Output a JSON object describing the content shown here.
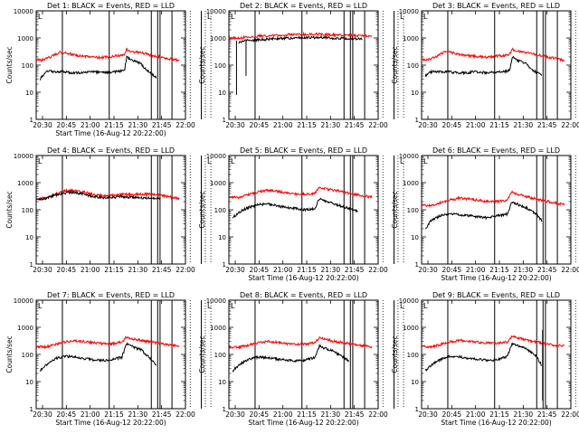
{
  "chart_data": {
    "type": "line",
    "layout": "3x3 grid",
    "ylabel": "Counts/sec",
    "xlabel": "Start Time (16-Aug-12 20:22:00)",
    "ylim": [
      1,
      10000
    ],
    "yscale": "log",
    "yticks": [
      "1",
      "10",
      "100",
      "1000",
      "10000"
    ],
    "xlim": [
      "20:26",
      "22:00"
    ],
    "xticks": [
      "20:30",
      "20:45",
      "21:00",
      "21:15",
      "21:30",
      "21:45",
      "22:00"
    ],
    "legend": {
      "black": "Events",
      "red": "LLD"
    },
    "colors": {
      "events": "#000000",
      "lld": "#ff0000"
    },
    "marker_text": "L",
    "solid_markers_min": [
      20.5,
      50.0,
      76.5,
      80.5,
      82.0,
      89.5,
      108.0
    ],
    "dotted_markers_min": [
      101.0,
      110.5,
      114.0
    ],
    "panels": [
      {
        "title": "Det  1: BLACK = Events, RED = LLD",
        "show_xlabel": true,
        "events": [
          [
            4,
            30
          ],
          [
            8,
            45
          ],
          [
            12,
            60
          ],
          [
            20,
            58
          ],
          [
            30,
            56
          ],
          [
            40,
            52
          ],
          [
            50,
            53
          ],
          [
            55,
            58
          ],
          [
            60,
            55
          ],
          [
            70,
            52
          ],
          [
            80,
            55
          ],
          [
            90,
            60
          ],
          [
            93,
            70
          ],
          [
            95,
            200
          ],
          [
            97,
            180
          ],
          [
            100,
            150
          ],
          [
            105,
            140
          ],
          [
            110,
            110
          ],
          [
            115,
            70
          ],
          [
            120,
            50
          ],
          [
            124,
            40
          ],
          [
            126,
            35
          ]
        ],
        "lld": [
          [
            0,
            160
          ],
          [
            5,
            150
          ],
          [
            10,
            170
          ],
          [
            15,
            200
          ],
          [
            20,
            250
          ],
          [
            25,
            300
          ],
          [
            30,
            290
          ],
          [
            40,
            240
          ],
          [
            50,
            210
          ],
          [
            60,
            200
          ],
          [
            70,
            190
          ],
          [
            75,
            200
          ],
          [
            80,
            210
          ],
          [
            85,
            220
          ],
          [
            90,
            230
          ],
          [
            93,
            260
          ],
          [
            95,
            400
          ],
          [
            97,
            330
          ],
          [
            100,
            310
          ],
          [
            110,
            290
          ],
          [
            120,
            230
          ],
          [
            130,
            200
          ],
          [
            140,
            170
          ],
          [
            150,
            150
          ]
        ]
      },
      {
        "title": "Det  2: BLACK = Events, RED = LLD",
        "show_xlabel": false,
        "events": [
          [
            10,
            700
          ],
          [
            15,
            780
          ],
          [
            30,
            850
          ],
          [
            50,
            950
          ],
          [
            70,
            1000
          ],
          [
            95,
            1050
          ],
          [
            110,
            980
          ],
          [
            125,
            940
          ],
          [
            135,
            920
          ],
          [
            140,
            900
          ]
        ],
        "lld": [
          [
            0,
            1000
          ],
          [
            10,
            1010
          ],
          [
            30,
            1150
          ],
          [
            50,
            1250
          ],
          [
            70,
            1350
          ],
          [
            90,
            1400
          ],
          [
            100,
            1350
          ],
          [
            120,
            1250
          ],
          [
            140,
            1200
          ],
          [
            150,
            1200
          ]
        ],
        "spikes": [
          [
            8,
            8
          ],
          [
            18,
            40
          ]
        ]
      },
      {
        "title": "Det  3: BLACK = Events, RED = LLD",
        "show_xlabel": false,
        "events": [
          [
            4,
            40
          ],
          [
            8,
            50
          ],
          [
            12,
            60
          ],
          [
            20,
            58
          ],
          [
            30,
            56
          ],
          [
            40,
            52
          ],
          [
            50,
            53
          ],
          [
            55,
            58
          ],
          [
            60,
            55
          ],
          [
            70,
            52
          ],
          [
            80,
            55
          ],
          [
            90,
            60
          ],
          [
            93,
            70
          ],
          [
            95,
            200
          ],
          [
            97,
            180
          ],
          [
            100,
            150
          ],
          [
            105,
            140
          ],
          [
            110,
            110
          ],
          [
            115,
            70
          ],
          [
            120,
            55
          ],
          [
            126,
            45
          ]
        ],
        "lld": [
          [
            0,
            160
          ],
          [
            5,
            150
          ],
          [
            10,
            170
          ],
          [
            15,
            200
          ],
          [
            20,
            260
          ],
          [
            25,
            310
          ],
          [
            30,
            300
          ],
          [
            40,
            250
          ],
          [
            50,
            220
          ],
          [
            60,
            205
          ],
          [
            70,
            195
          ],
          [
            75,
            205
          ],
          [
            80,
            220
          ],
          [
            85,
            225
          ],
          [
            90,
            235
          ],
          [
            93,
            260
          ],
          [
            95,
            400
          ],
          [
            97,
            340
          ],
          [
            100,
            320
          ],
          [
            110,
            300
          ],
          [
            120,
            240
          ],
          [
            130,
            210
          ],
          [
            140,
            180
          ],
          [
            150,
            150
          ]
        ]
      },
      {
        "title": "Det  4: BLACK = Events, RED = LLD",
        "show_xlabel": false,
        "events": [
          [
            0,
            230
          ],
          [
            10,
            260
          ],
          [
            20,
            340
          ],
          [
            30,
            420
          ],
          [
            40,
            440
          ],
          [
            50,
            380
          ],
          [
            60,
            300
          ],
          [
            70,
            280
          ],
          [
            80,
            290
          ],
          [
            90,
            300
          ],
          [
            100,
            290
          ],
          [
            110,
            280
          ],
          [
            120,
            270
          ],
          [
            130,
            260
          ]
        ],
        "lld": [
          [
            0,
            250
          ],
          [
            10,
            270
          ],
          [
            20,
            380
          ],
          [
            30,
            500
          ],
          [
            40,
            520
          ],
          [
            50,
            450
          ],
          [
            60,
            360
          ],
          [
            70,
            330
          ],
          [
            80,
            340
          ],
          [
            90,
            360
          ],
          [
            100,
            370
          ],
          [
            110,
            380
          ],
          [
            120,
            370
          ],
          [
            130,
            340
          ],
          [
            140,
            300
          ],
          [
            150,
            260
          ]
        ]
      },
      {
        "title": "Det  5: BLACK = Events, RED = LLD",
        "show_xlabel": true,
        "events": [
          [
            4,
            50
          ],
          [
            10,
            80
          ],
          [
            20,
            120
          ],
          [
            30,
            150
          ],
          [
            40,
            170
          ],
          [
            50,
            140
          ],
          [
            60,
            120
          ],
          [
            70,
            110
          ],
          [
            80,
            100
          ],
          [
            90,
            110
          ],
          [
            95,
            250
          ],
          [
            100,
            220
          ],
          [
            110,
            170
          ],
          [
            120,
            130
          ],
          [
            130,
            100
          ],
          [
            135,
            90
          ]
        ],
        "lld": [
          [
            0,
            300
          ],
          [
            10,
            290
          ],
          [
            20,
            350
          ],
          [
            30,
            450
          ],
          [
            40,
            520
          ],
          [
            50,
            480
          ],
          [
            60,
            420
          ],
          [
            70,
            380
          ],
          [
            80,
            380
          ],
          [
            90,
            400
          ],
          [
            95,
            650
          ],
          [
            100,
            600
          ],
          [
            110,
            530
          ],
          [
            120,
            460
          ],
          [
            130,
            380
          ],
          [
            140,
            330
          ],
          [
            150,
            290
          ]
        ]
      },
      {
        "title": "Det  6: BLACK = Events, RED = LLD",
        "show_xlabel": true,
        "events": [
          [
            4,
            20
          ],
          [
            10,
            40
          ],
          [
            20,
            60
          ],
          [
            30,
            70
          ],
          [
            40,
            65
          ],
          [
            50,
            60
          ],
          [
            60,
            55
          ],
          [
            70,
            50
          ],
          [
            80,
            60
          ],
          [
            90,
            70
          ],
          [
            95,
            200
          ],
          [
            100,
            160
          ],
          [
            110,
            120
          ],
          [
            120,
            70
          ],
          [
            126,
            40
          ]
        ],
        "lld": [
          [
            0,
            150
          ],
          [
            10,
            140
          ],
          [
            20,
            180
          ],
          [
            30,
            230
          ],
          [
            40,
            270
          ],
          [
            50,
            250
          ],
          [
            60,
            220
          ],
          [
            70,
            200
          ],
          [
            80,
            200
          ],
          [
            90,
            230
          ],
          [
            95,
            450
          ],
          [
            100,
            380
          ],
          [
            110,
            310
          ],
          [
            120,
            250
          ],
          [
            130,
            210
          ],
          [
            140,
            180
          ],
          [
            150,
            150
          ]
        ]
      },
      {
        "title": "Det  7: BLACK = Events, RED = LLD",
        "show_xlabel": true,
        "events": [
          [
            4,
            25
          ],
          [
            10,
            40
          ],
          [
            20,
            70
          ],
          [
            30,
            85
          ],
          [
            40,
            80
          ],
          [
            50,
            70
          ],
          [
            60,
            65
          ],
          [
            70,
            60
          ],
          [
            80,
            65
          ],
          [
            90,
            80
          ],
          [
            95,
            250
          ],
          [
            100,
            200
          ],
          [
            110,
            150
          ],
          [
            120,
            70
          ],
          [
            126,
            40
          ]
        ],
        "lld": [
          [
            0,
            200
          ],
          [
            10,
            190
          ],
          [
            20,
            230
          ],
          [
            30,
            290
          ],
          [
            40,
            320
          ],
          [
            50,
            300
          ],
          [
            60,
            270
          ],
          [
            70,
            250
          ],
          [
            80,
            250
          ],
          [
            90,
            280
          ],
          [
            95,
            450
          ],
          [
            100,
            390
          ],
          [
            110,
            330
          ],
          [
            120,
            290
          ],
          [
            130,
            250
          ],
          [
            140,
            220
          ],
          [
            150,
            200
          ]
        ]
      },
      {
        "title": "Det  8: BLACK = Events, RED = LLD",
        "show_xlabel": true,
        "events": [
          [
            4,
            25
          ],
          [
            10,
            40
          ],
          [
            20,
            65
          ],
          [
            30,
            80
          ],
          [
            40,
            75
          ],
          [
            50,
            68
          ],
          [
            60,
            62
          ],
          [
            70,
            58
          ],
          [
            80,
            62
          ],
          [
            90,
            75
          ],
          [
            95,
            200
          ],
          [
            100,
            170
          ],
          [
            110,
            130
          ],
          [
            120,
            80
          ],
          [
            126,
            55
          ]
        ],
        "lld": [
          [
            0,
            190
          ],
          [
            10,
            180
          ],
          [
            20,
            220
          ],
          [
            30,
            270
          ],
          [
            40,
            300
          ],
          [
            50,
            280
          ],
          [
            60,
            250
          ],
          [
            70,
            240
          ],
          [
            80,
            240
          ],
          [
            90,
            270
          ],
          [
            95,
            420
          ],
          [
            100,
            360
          ],
          [
            110,
            310
          ],
          [
            120,
            270
          ],
          [
            130,
            240
          ],
          [
            140,
            210
          ],
          [
            150,
            190
          ]
        ]
      },
      {
        "title": "Det  9: BLACK = Events, RED = LLD",
        "show_xlabel": true,
        "events": [
          [
            4,
            25
          ],
          [
            10,
            40
          ],
          [
            20,
            65
          ],
          [
            30,
            85
          ],
          [
            40,
            80
          ],
          [
            50,
            70
          ],
          [
            60,
            65
          ],
          [
            70,
            60
          ],
          [
            80,
            65
          ],
          [
            90,
            85
          ],
          [
            95,
            250
          ],
          [
            100,
            210
          ],
          [
            110,
            160
          ],
          [
            120,
            90
          ],
          [
            126,
            40
          ]
        ],
        "lld": [
          [
            0,
            200
          ],
          [
            10,
            190
          ],
          [
            20,
            230
          ],
          [
            30,
            290
          ],
          [
            40,
            330
          ],
          [
            50,
            310
          ],
          [
            60,
            280
          ],
          [
            70,
            260
          ],
          [
            80,
            260
          ],
          [
            90,
            290
          ],
          [
            95,
            480
          ],
          [
            100,
            410
          ],
          [
            110,
            340
          ],
          [
            120,
            290
          ],
          [
            130,
            250
          ],
          [
            140,
            220
          ],
          [
            150,
            200
          ]
        ],
        "spikes": [
          [
            127,
            2
          ]
        ]
      }
    ]
  }
}
